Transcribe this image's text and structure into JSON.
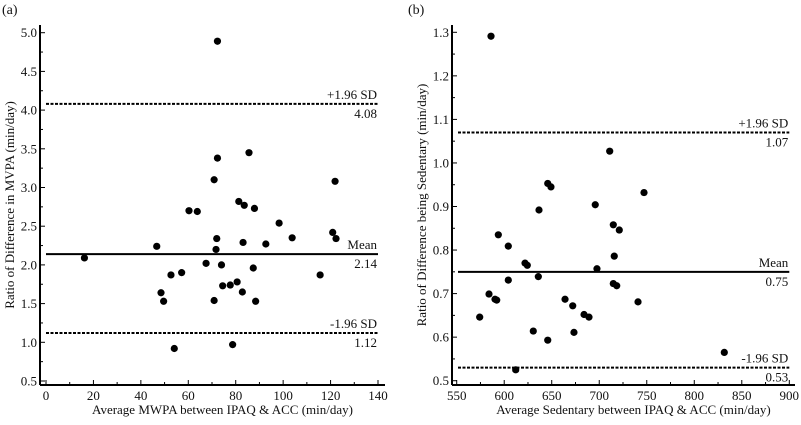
{
  "chart_data": [
    {
      "type": "scatter",
      "panel_label": "(a)",
      "title": "",
      "xlabel": "Average MWPA between IPAQ & ACC (min/day)",
      "ylabel": "Ratio of Difference in MVPA (min/day)",
      "xlim": [
        0,
        140
      ],
      "ylim": [
        0.5,
        5.0
      ],
      "xticks": [
        0,
        20,
        40,
        60,
        80,
        100,
        120,
        140
      ],
      "xtick_labels": [
        "0",
        "20",
        "40",
        "60",
        "80",
        "100",
        "120",
        "140"
      ],
      "yticks": [
        0.5,
        1.0,
        1.5,
        2.0,
        2.5,
        3.0,
        3.5,
        4.0,
        4.5,
        5.0
      ],
      "ytick_labels": [
        "0.5",
        "1.0",
        "1.5",
        "2.0",
        "2.5",
        "3.0",
        "3.5",
        "4.0",
        "4.5",
        "5.0"
      ],
      "grid": false,
      "reference_lines": [
        {
          "name": "upper-loa",
          "value": 4.08,
          "label": "+1.96 SD",
          "value_label": "4.08",
          "style": "dashed"
        },
        {
          "name": "mean",
          "value": 2.14,
          "label": "Mean",
          "value_label": "2.14",
          "style": "solid"
        },
        {
          "name": "lower-loa",
          "value": 1.12,
          "label": "-1.96 SD",
          "value_label": "1.12",
          "style": "dashed"
        }
      ],
      "points": [
        [
          16.2,
          2.09
        ],
        [
          46.7,
          2.24
        ],
        [
          48.5,
          1.64
        ],
        [
          49.6,
          1.53
        ],
        [
          52.7,
          1.87
        ],
        [
          54.1,
          0.92
        ],
        [
          57.2,
          1.9
        ],
        [
          60.3,
          2.7
        ],
        [
          63.8,
          2.69
        ],
        [
          67.5,
          2.02
        ],
        [
          70.9,
          3.1
        ],
        [
          70.9,
          1.54
        ],
        [
          71.7,
          2.2
        ],
        [
          72.0,
          2.34
        ],
        [
          72.3,
          3.38
        ],
        [
          72.3,
          4.89
        ],
        [
          74.0,
          2.0
        ],
        [
          74.5,
          1.73
        ],
        [
          77.7,
          1.74
        ],
        [
          78.7,
          0.97
        ],
        [
          80.6,
          1.78
        ],
        [
          81.3,
          2.82
        ],
        [
          82.8,
          1.65
        ],
        [
          83.1,
          2.29
        ],
        [
          83.6,
          2.77
        ],
        [
          85.6,
          3.45
        ],
        [
          87.4,
          1.96
        ],
        [
          87.9,
          2.73
        ],
        [
          88.4,
          1.53
        ],
        [
          92.7,
          2.27
        ],
        [
          98.3,
          2.54
        ],
        [
          103.8,
          2.35
        ],
        [
          115.6,
          1.87
        ],
        [
          120.9,
          2.42
        ],
        [
          121.9,
          3.08
        ],
        [
          122.3,
          2.34
        ]
      ]
    },
    {
      "type": "scatter",
      "panel_label": "(b)",
      "title": "",
      "xlabel": "Average Sedentary between IPAQ & ACC (min/day)",
      "ylabel": "Ratio of Difference being Sedentary (min/day)",
      "xlim": [
        550,
        900
      ],
      "ylim": [
        0.5,
        1.3
      ],
      "xticks": [
        550,
        600,
        650,
        700,
        750,
        800,
        850,
        900
      ],
      "xtick_labels": [
        "550",
        "600",
        "650",
        "700",
        "750",
        "800",
        "850",
        "900"
      ],
      "yticks": [
        0.5,
        0.6,
        0.7,
        0.8,
        0.9,
        1.0,
        1.1,
        1.2,
        1.3
      ],
      "ytick_labels": [
        "0.5",
        "0.6",
        "0.7",
        "0.8",
        "0.9",
        "1.0",
        "1.1",
        "1.2",
        "1.3"
      ],
      "grid": false,
      "reference_lines": [
        {
          "name": "upper-loa",
          "value": 1.07,
          "label": "+1.96 SD",
          "value_label": "1.07",
          "style": "dashed"
        },
        {
          "name": "mean",
          "value": 0.75,
          "label": "Mean",
          "value_label": "0.75",
          "style": "solid"
        },
        {
          "name": "lower-loa",
          "value": 0.53,
          "label": "-1.96 SD",
          "value_label": "0.53",
          "style": "dashed"
        }
      ],
      "points": [
        [
          574.2,
          0.646
        ],
        [
          584.0,
          0.699
        ],
        [
          586.1,
          1.291
        ],
        [
          590.3,
          0.687
        ],
        [
          592.1,
          0.685
        ],
        [
          593.8,
          0.835
        ],
        [
          604.3,
          0.809
        ],
        [
          604.3,
          0.731
        ],
        [
          612.1,
          0.525
        ],
        [
          621.9,
          0.77
        ],
        [
          624.3,
          0.765
        ],
        [
          630.6,
          0.614
        ],
        [
          635.9,
          0.739
        ],
        [
          636.6,
          0.892
        ],
        [
          645.8,
          0.953
        ],
        [
          645.8,
          0.593
        ],
        [
          649.2,
          0.945
        ],
        [
          664.0,
          0.687
        ],
        [
          672.1,
          0.672
        ],
        [
          673.4,
          0.611
        ],
        [
          684.0,
          0.652
        ],
        [
          689.2,
          0.646
        ],
        [
          695.8,
          0.904
        ],
        [
          697.6,
          0.757
        ],
        [
          711.0,
          1.027
        ],
        [
          714.8,
          0.858
        ],
        [
          714.8,
          0.723
        ],
        [
          715.8,
          0.786
        ],
        [
          718.4,
          0.718
        ],
        [
          721.1,
          0.846
        ],
        [
          740.8,
          0.681
        ],
        [
          747.1,
          0.932
        ],
        [
          831.6,
          0.565
        ]
      ]
    }
  ]
}
